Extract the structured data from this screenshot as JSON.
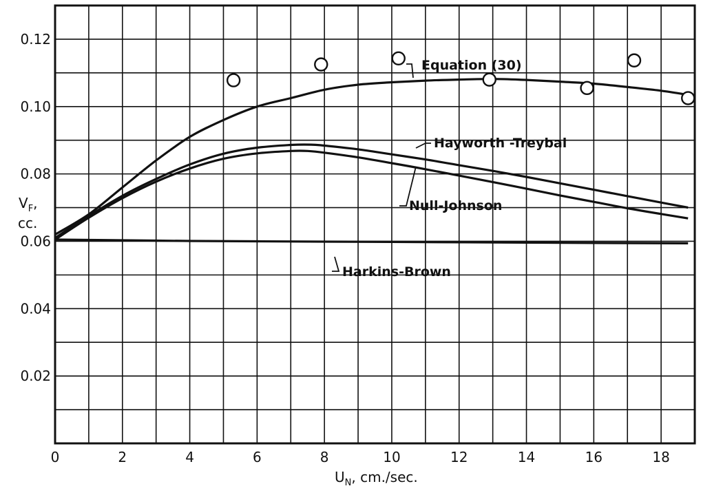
{
  "chart_data": {
    "type": "line",
    "title": "",
    "xlabel": "U_N, cm./sec.",
    "xlabel_main": "U",
    "xlabel_sub": "N",
    "xlabel_rest": ", cm./sec.",
    "ylabel_line1_main": "V",
    "ylabel_line1_sub": "F",
    "ylabel_line1_rest": ",",
    "ylabel_line2": "cc.",
    "xlim": [
      0,
      19
    ],
    "ylim": [
      0,
      0.13
    ],
    "grid": true,
    "x_ticks": [
      0,
      2,
      4,
      6,
      8,
      10,
      12,
      14,
      16,
      18
    ],
    "x_tick_labels": [
      "0",
      "2",
      "4",
      "6",
      "8",
      "10",
      "12",
      "14",
      "16",
      "18"
    ],
    "y_ticks": [
      0.02,
      0.04,
      0.06,
      0.08,
      0.1,
      0.12
    ],
    "y_tick_labels": [
      "0.02",
      "0.04",
      "0.06",
      "0.08",
      "0.10",
      "0.12"
    ],
    "series": [
      {
        "name": "Equation (30)",
        "kind": "line",
        "points": [
          [
            0,
            0.062
          ],
          [
            1,
            0.068
          ],
          [
            2,
            0.076
          ],
          [
            3,
            0.084
          ],
          [
            4,
            0.091
          ],
          [
            5,
            0.096
          ],
          [
            6,
            0.1
          ],
          [
            7,
            0.1025
          ],
          [
            8,
            0.105
          ],
          [
            9,
            0.1065
          ],
          [
            10,
            0.1072
          ],
          [
            11,
            0.1077
          ],
          [
            12,
            0.108
          ],
          [
            13,
            0.1082
          ],
          [
            14,
            0.1079
          ],
          [
            15,
            0.1074
          ],
          [
            16,
            0.1068
          ],
          [
            17,
            0.1058
          ],
          [
            18,
            0.1047
          ],
          [
            18.8,
            0.1035
          ]
        ]
      },
      {
        "name": "Hayworth-Treybal",
        "kind": "line",
        "points": [
          [
            0,
            0.061
          ],
          [
            1,
            0.0675
          ],
          [
            2,
            0.0735
          ],
          [
            3,
            0.0785
          ],
          [
            4,
            0.0828
          ],
          [
            5,
            0.086
          ],
          [
            6,
            0.0878
          ],
          [
            7,
            0.0886
          ],
          [
            7.6,
            0.0887
          ],
          [
            8,
            0.0884
          ],
          [
            9,
            0.0873
          ],
          [
            10,
            0.0858
          ],
          [
            11,
            0.0843
          ],
          [
            12,
            0.0826
          ],
          [
            13,
            0.0809
          ],
          [
            14,
            0.0791
          ],
          [
            15,
            0.0772
          ],
          [
            16,
            0.0753
          ],
          [
            17,
            0.0734
          ],
          [
            18,
            0.0715
          ],
          [
            18.8,
            0.07
          ]
        ]
      },
      {
        "name": "Null-Johnson",
        "kind": "line",
        "points": [
          [
            0,
            0.0605
          ],
          [
            1,
            0.067
          ],
          [
            2,
            0.0728
          ],
          [
            3,
            0.0777
          ],
          [
            4,
            0.0816
          ],
          [
            5,
            0.0845
          ],
          [
            6,
            0.0861
          ],
          [
            7,
            0.0868
          ],
          [
            7.5,
            0.0868
          ],
          [
            8,
            0.0863
          ],
          [
            9,
            0.0849
          ],
          [
            10,
            0.0832
          ],
          [
            11,
            0.0814
          ],
          [
            12,
            0.0795
          ],
          [
            13,
            0.0776
          ],
          [
            14,
            0.0756
          ],
          [
            15,
            0.0736
          ],
          [
            16,
            0.0717
          ],
          [
            17,
            0.0698
          ],
          [
            18,
            0.0681
          ],
          [
            18.8,
            0.0668
          ]
        ]
      },
      {
        "name": "Harkins-Brown",
        "kind": "line",
        "points": [
          [
            0,
            0.0605
          ],
          [
            2,
            0.0603
          ],
          [
            4,
            0.0601
          ],
          [
            6,
            0.06
          ],
          [
            8,
            0.0599
          ],
          [
            10,
            0.0598
          ],
          [
            12,
            0.0597
          ],
          [
            14,
            0.0596
          ],
          [
            16,
            0.0595
          ],
          [
            18.8,
            0.0594
          ]
        ]
      },
      {
        "name": "",
        "kind": "points",
        "points": [
          [
            5.3,
            0.1078
          ],
          [
            7.9,
            0.1125
          ],
          [
            10.2,
            0.1143
          ],
          [
            12.9,
            0.108
          ],
          [
            15.8,
            0.1055
          ],
          [
            17.2,
            0.1137
          ],
          [
            18.8,
            0.1025
          ]
        ]
      }
    ],
    "annotations": [
      "Equation (30)",
      "Hayworth -Treybal",
      "Null-Johnson",
      "Harkins-Brown"
    ]
  }
}
